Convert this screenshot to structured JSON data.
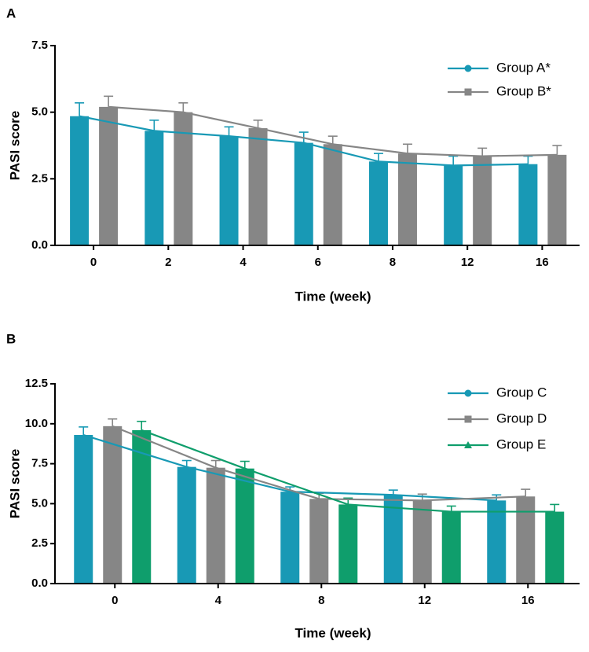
{
  "chart_data": [
    {
      "type": "bar",
      "panel_label": "A",
      "x_label": "Time (week)",
      "y_label": "PASI score",
      "categories": [
        "0",
        "2",
        "4",
        "6",
        "8",
        "12",
        "16"
      ],
      "ylim": [
        0,
        7.5
      ],
      "yticks": [
        {
          "value": 0,
          "label": "0.0"
        },
        {
          "value": 2.5,
          "label": "2.5"
        },
        {
          "value": 5,
          "label": "5.0"
        },
        {
          "value": 7.5,
          "label": "7.5"
        }
      ],
      "legend": "top-right",
      "series": [
        {
          "name": "Group A*",
          "color": "#1899b5",
          "marker": "circle",
          "values": [
            4.85,
            4.3,
            4.1,
            3.85,
            3.15,
            3.0,
            3.05
          ],
          "errors": [
            0.5,
            0.4,
            0.35,
            0.4,
            0.3,
            0.35,
            0.3
          ]
        },
        {
          "name": "Group B*",
          "color": "#868686",
          "marker": "square",
          "values": [
            5.2,
            5.0,
            4.4,
            3.8,
            3.45,
            3.35,
            3.4
          ],
          "errors": [
            0.4,
            0.35,
            0.3,
            0.3,
            0.35,
            0.3,
            0.35
          ]
        }
      ]
    },
    {
      "type": "bar",
      "panel_label": "B",
      "x_label": "Time (week)",
      "y_label": "PASI score",
      "categories": [
        "0",
        "4",
        "8",
        "12",
        "16"
      ],
      "ylim": [
        0,
        12.5
      ],
      "yticks": [
        {
          "value": 0,
          "label": "0.0"
        },
        {
          "value": 2.5,
          "label": "2.5"
        },
        {
          "value": 5,
          "label": "5.0"
        },
        {
          "value": 7.5,
          "label": "7.5"
        },
        {
          "value": 10,
          "label": "10.0"
        },
        {
          "value": 12.5,
          "label": "12.5"
        }
      ],
      "legend": "top-right",
      "series": [
        {
          "name": "Group C",
          "color": "#1899b5",
          "marker": "circle",
          "values": [
            9.3,
            7.3,
            5.75,
            5.55,
            5.2
          ],
          "errors": [
            0.5,
            0.4,
            0.3,
            0.3,
            0.35
          ]
        },
        {
          "name": "Group D",
          "color": "#868686",
          "marker": "square",
          "values": [
            9.85,
            7.25,
            5.3,
            5.2,
            5.45
          ],
          "errors": [
            0.45,
            0.45,
            0.35,
            0.4,
            0.45
          ]
        },
        {
          "name": "Group E",
          "color": "#0f9e6c",
          "marker": "triangle",
          "values": [
            9.6,
            7.2,
            4.95,
            4.5,
            4.5
          ],
          "errors": [
            0.55,
            0.45,
            0.4,
            0.35,
            0.45
          ]
        }
      ]
    }
  ]
}
